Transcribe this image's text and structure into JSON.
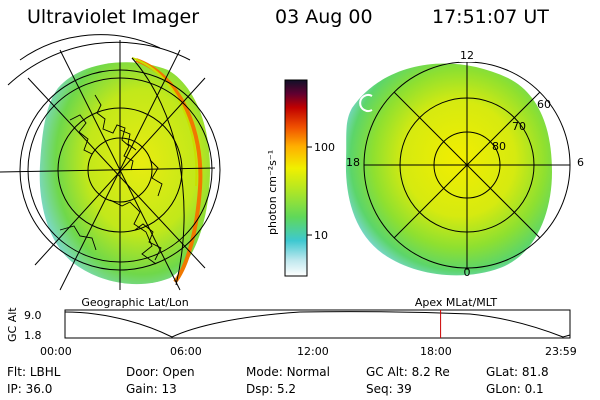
{
  "header": {
    "instrument": "Ultraviolet Imager",
    "date": "03 Aug 00",
    "time": "17:51:07 UT"
  },
  "left_panel": {
    "label": "Geographic Lat/Lon"
  },
  "right_panel": {
    "label": "Apex MLat/MLT",
    "hour_labels": {
      "top": "12",
      "left": "18",
      "right": "6",
      "bottom": "0"
    },
    "lat_labels": [
      "60",
      "70",
      "80"
    ]
  },
  "colorbar": {
    "unit_label": "photon cm⁻²s⁻¹",
    "ticks": [
      "100",
      "10"
    ],
    "scale": "log"
  },
  "timeline": {
    "axis_label": "GC Alt",
    "y_ticks": [
      "9.0",
      "1.8"
    ],
    "x_ticks": [
      "00:00",
      "06:00",
      "12:00",
      "18:00",
      "23:59"
    ],
    "current_time_hours": 17.85,
    "marker_color": "#cc0000"
  },
  "info": {
    "row1": [
      {
        "label": "Flt:",
        "value": "LBHL"
      },
      {
        "label": "Door:",
        "value": "Open"
      },
      {
        "label": "Mode:",
        "value": "Normal"
      },
      {
        "label": "GC Alt:",
        "value": "8.2 Re"
      },
      {
        "label": "GLat:",
        "value": "81.8"
      }
    ],
    "row2": [
      {
        "label": "IP:",
        "value": "36.0"
      },
      {
        "label": "Gain:",
        "value": "13"
      },
      {
        "label": "Dsp:",
        "value": "5.2"
      },
      {
        "label": "Seq:",
        "value": "39"
      },
      {
        "label": "GLon:",
        "value": "0.1"
      }
    ]
  }
}
